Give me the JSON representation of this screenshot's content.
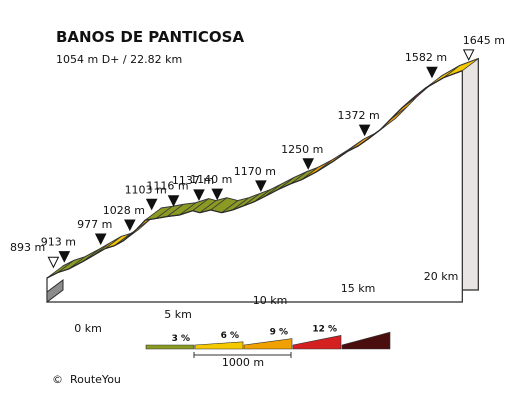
{
  "chart_data": {
    "type": "area",
    "title": "BANOS DE PANTICOSA",
    "subtitle": "1054 m D+ / 22.82 km",
    "distance_ticks": [
      "0 km",
      "5 km",
      "10 km",
      "15 km",
      "20 km"
    ],
    "profile_points": [
      {
        "km": 0.0,
        "alt": 893
      },
      {
        "km": 0.6,
        "alt": 913
      },
      {
        "km": 1.2,
        "alt": 926
      },
      {
        "km": 2.0,
        "alt": 954
      },
      {
        "km": 2.6,
        "alt": 977
      },
      {
        "km": 3.2,
        "alt": 1000
      },
      {
        "km": 3.7,
        "alt": 1010
      },
      {
        "km": 4.2,
        "alt": 1028
      },
      {
        "km": 4.9,
        "alt": 1068
      },
      {
        "km": 5.4,
        "alt": 1103
      },
      {
        "km": 6.0,
        "alt": 1109
      },
      {
        "km": 6.6,
        "alt": 1116
      },
      {
        "km": 7.3,
        "alt": 1122
      },
      {
        "km": 8.0,
        "alt": 1137
      },
      {
        "km": 8.4,
        "alt": 1130
      },
      {
        "km": 9.0,
        "alt": 1140
      },
      {
        "km": 9.6,
        "alt": 1130
      },
      {
        "km": 10.2,
        "alt": 1140
      },
      {
        "km": 10.8,
        "alt": 1155
      },
      {
        "km": 11.4,
        "alt": 1170
      },
      {
        "km": 12.0,
        "alt": 1190
      },
      {
        "km": 12.7,
        "alt": 1214
      },
      {
        "km": 13.4,
        "alt": 1235
      },
      {
        "km": 14.0,
        "alt": 1250
      },
      {
        "km": 14.8,
        "alt": 1278
      },
      {
        "km": 15.7,
        "alt": 1315
      },
      {
        "km": 16.5,
        "alt": 1352
      },
      {
        "km": 17.1,
        "alt": 1372
      },
      {
        "km": 17.7,
        "alt": 1400
      },
      {
        "km": 18.3,
        "alt": 1430
      },
      {
        "km": 18.9,
        "alt": 1470
      },
      {
        "km": 19.5,
        "alt": 1510
      },
      {
        "km": 20.2,
        "alt": 1550
      },
      {
        "km": 20.8,
        "alt": 1582
      },
      {
        "km": 21.8,
        "alt": 1620
      },
      {
        "km": 22.82,
        "alt": 1645
      }
    ],
    "segment_gradient_classes": [
      1,
      1,
      1,
      1,
      2,
      2,
      1,
      2,
      3,
      1,
      1,
      1,
      1,
      1,
      1,
      1,
      1,
      1,
      1,
      1,
      1,
      1,
      1,
      3,
      3,
      3,
      3,
      3,
      3,
      3,
      3,
      4,
      4,
      2,
      2
    ],
    "altitude_markers": [
      {
        "label": "893 m",
        "km": 0.0,
        "marker": "open"
      },
      {
        "label": "913 m",
        "km": 0.6,
        "marker": "filled"
      },
      {
        "label": "977 m",
        "km": 2.6,
        "marker": "filled"
      },
      {
        "label": "1028 m",
        "km": 4.2,
        "marker": "filled"
      },
      {
        "label": "1103 m",
        "km": 5.4,
        "marker": "filled"
      },
      {
        "label": "1116 m",
        "km": 6.6,
        "marker": "filled"
      },
      {
        "label": "1137 m",
        "km": 8.0,
        "marker": "filled"
      },
      {
        "label": "1140 m",
        "km": 9.0,
        "marker": "filled"
      },
      {
        "label": "1170 m",
        "km": 11.4,
        "marker": "filled"
      },
      {
        "label": "1250 m",
        "km": 14.0,
        "marker": "filled"
      },
      {
        "label": "1372 m",
        "km": 17.1,
        "marker": "filled"
      },
      {
        "label": "1582 m",
        "km": 20.8,
        "marker": "filled"
      },
      {
        "label": "1645 m",
        "km": 22.82,
        "marker": "open"
      }
    ],
    "legend": {
      "items": [
        {
          "label": "3 %",
          "color": "#8a9a22"
        },
        {
          "label": "6 %",
          "color": "#f5c800"
        },
        {
          "label": "9 %",
          "color": "#f0a000"
        },
        {
          "label": "12 %",
          "color": "#d42020"
        },
        {
          "label": "",
          "color": "#4a0e0e"
        }
      ],
      "scale_label": "1000 m"
    }
  },
  "footer": {
    "copyright_symbol": "©",
    "brand": "RouteYou"
  }
}
